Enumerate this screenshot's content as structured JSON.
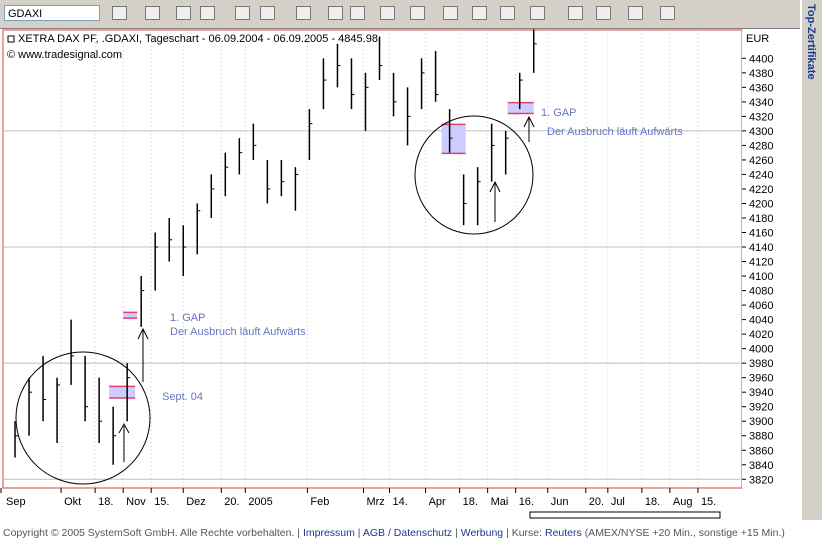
{
  "toolbar": {
    "symbol": "GDAXI"
  },
  "side_tab": "Top-Zertifikate",
  "footer": {
    "copyright": "Copyright © 2005 SystemSoft GmbH. Alle Rechte vorbehalten.",
    "links": [
      "Impressum",
      "AGB / Datenschutz",
      "Werbung"
    ],
    "quotes_label": "Kurse:",
    "quotes_source": "Reuters",
    "quotes_delay": "(AMEX/NYSE +20 Min., sonstige +15 Min.)"
  },
  "chart_data": {
    "type": "ohlc",
    "title": "XETRA DAX PF, .GDAXI, Tageschart - 06.09.2004 - 06.09.2005 - 4845.98",
    "source": "© www.tradesignal.com",
    "y_axis_label": "EUR",
    "color": "#000000",
    "x": [
      "2004-09-06",
      "2004-09-13",
      "2004-09-20",
      "2004-09-27",
      "2004-10-04",
      "2004-10-11",
      "2004-10-18",
      "2004-10-25",
      "2004-11-01",
      "2004-11-08",
      "2004-11-15",
      "2004-11-22",
      "2004-11-29",
      "2004-12-06",
      "2004-12-13",
      "2004-12-20",
      "2004-12-27",
      "2005-01-03",
      "2005-01-10",
      "2005-01-17",
      "2005-01-24",
      "2005-01-31",
      "2005-02-07",
      "2005-02-14",
      "2005-02-21",
      "2005-02-28",
      "2005-03-07",
      "2005-03-14",
      "2005-03-21",
      "2005-03-28",
      "2005-04-04",
      "2005-04-11",
      "2005-04-18",
      "2005-04-25",
      "2005-05-02",
      "2005-05-09",
      "2005-05-16",
      "2005-05-23"
    ],
    "high": [
      3900,
      3960,
      3990,
      3960,
      4040,
      3990,
      3960,
      3920,
      3980,
      4100,
      4160,
      4180,
      4170,
      4200,
      4240,
      4270,
      4290,
      4310,
      4260,
      4260,
      4250,
      4330,
      4400,
      4420,
      4400,
      4380,
      4430,
      4380,
      4360,
      4400,
      4410,
      4330,
      4240,
      4250,
      4310,
      4300,
      4380,
      4440
    ],
    "low": [
      3850,
      3880,
      3900,
      3870,
      3950,
      3900,
      3870,
      3840,
      3900,
      4030,
      4080,
      4120,
      4100,
      4130,
      4180,
      4210,
      4240,
      4260,
      4200,
      4210,
      4190,
      4260,
      4330,
      4360,
      4330,
      4300,
      4370,
      4320,
      4280,
      4330,
      4340,
      4270,
      4170,
      4170,
      4230,
      4240,
      4330,
      4380
    ],
    "close": [
      3880,
      3940,
      3930,
      3950,
      3990,
      3920,
      3900,
      3880,
      3960,
      4080,
      4140,
      4150,
      4140,
      4190,
      4220,
      4250,
      4270,
      4280,
      4220,
      4230,
      4240,
      4310,
      4370,
      4390,
      4350,
      4360,
      4390,
      4340,
      4320,
      4380,
      4350,
      4290,
      4200,
      4230,
      4280,
      4290,
      4370,
      4420
    ],
    "gaps": [
      {
        "start": "2004-10-25",
        "end": "2004-11-07",
        "low": 3932,
        "high": 3948
      },
      {
        "start": "2004-11-01",
        "end": "2004-11-08",
        "low": 4042,
        "high": 4050
      },
      {
        "start": "2005-04-09",
        "end": "2005-04-21",
        "low": 4269,
        "high": 4309
      },
      {
        "start": "2005-05-12",
        "end": "2005-05-25",
        "low": 4324,
        "high": 4339
      }
    ],
    "annotations": [
      "1. GAP",
      "Der Ausbruch läuft Aufwärts",
      "Sept. 04",
      "1. GAP",
      "Der Ausbruch läuft Aufwärts"
    ],
    "xlim": [
      "2004-09-02",
      "2005-09-06"
    ],
    "xticks": [
      {
        "value": "2004-09-01",
        "label": "Sep"
      },
      {
        "value": "2004-10-01",
        "label": "Okt"
      },
      {
        "value": "2004-10-18",
        "label": "18."
      },
      {
        "value": "2004-11-01",
        "label": "Nov"
      },
      {
        "value": "2004-11-15",
        "label": "15."
      },
      {
        "value": "2004-12-01",
        "label": "Dez"
      },
      {
        "value": "2004-12-20",
        "label": "20."
      },
      {
        "value": "2005-01-01",
        "label": "2005"
      },
      {
        "value": "2005-02-01",
        "label": "Feb"
      },
      {
        "value": "2005-03-01",
        "label": "Mrz"
      },
      {
        "value": "2005-03-14",
        "label": "14."
      },
      {
        "value": "2005-04-01",
        "label": "Apr"
      },
      {
        "value": "2005-04-18",
        "label": "18."
      },
      {
        "value": "2005-05-02",
        "label": "Mai"
      },
      {
        "value": "2005-05-16",
        "label": "16."
      },
      {
        "value": "2005-06-01",
        "label": "Jun"
      },
      {
        "value": "2005-06-20",
        "label": "20."
      },
      {
        "value": "2005-07-01",
        "label": "Jul"
      },
      {
        "value": "2005-07-18",
        "label": "18."
      },
      {
        "value": "2005-08-01",
        "label": "Aug"
      },
      {
        "value": "2005-08-15",
        "label": "15."
      }
    ],
    "ylim": [
      3808,
      4439
    ],
    "yticks": [
      3820,
      3840,
      3860,
      3880,
      3900,
      3920,
      3940,
      3960,
      3980,
      4000,
      4020,
      4040,
      4060,
      4080,
      4100,
      4120,
      4140,
      4160,
      4180,
      4200,
      4220,
      4240,
      4260,
      4280,
      4300,
      4320,
      4340,
      4360,
      4380,
      4400
    ],
    "ygrid": [
      3820,
      3980,
      4140,
      4300
    ]
  }
}
